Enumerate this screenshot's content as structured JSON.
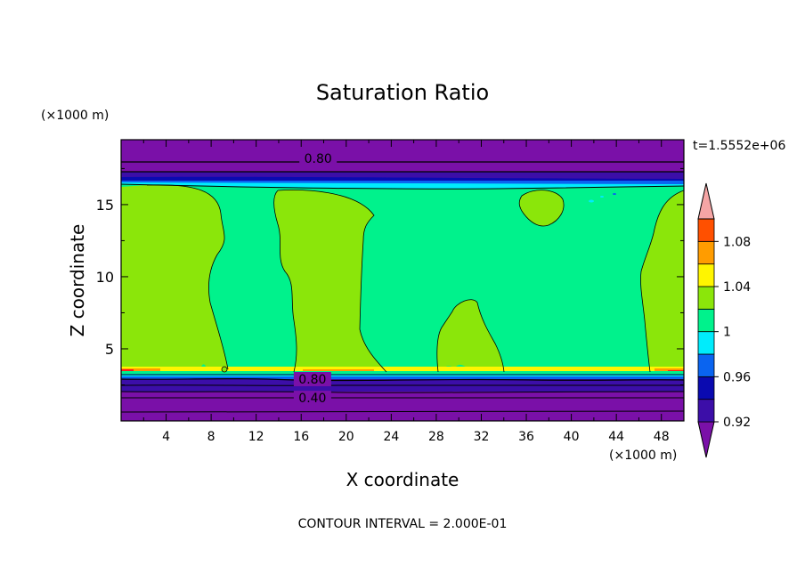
{
  "chart_data": {
    "type": "heatmap",
    "title": "Saturation Ratio",
    "xlabel": "X coordinate",
    "ylabel": "Z coordinate",
    "x_unit": "(×1000 m)",
    "y_unit": "(×1000 m)",
    "time_label": "t=1.5552e+06",
    "footer": "CONTOUR INTERVAL = 2.000E-01",
    "xlim": [
      0,
      50
    ],
    "ylim": [
      0,
      19.5
    ],
    "x_ticks": [
      4,
      8,
      12,
      16,
      20,
      24,
      28,
      32,
      36,
      40,
      44,
      48
    ],
    "y_ticks": [
      5,
      10,
      15
    ],
    "contour_labels": [
      {
        "text": "0.80",
        "x": 17.5,
        "z": 18.2
      },
      {
        "text": "0.80",
        "x": 17.0,
        "z": 2.9
      },
      {
        "text": "0.40",
        "x": 17.0,
        "z": 1.6
      }
    ],
    "colorbar": {
      "levels": [
        0.92,
        0.94,
        0.96,
        0.98,
        1.0,
        1.02,
        1.04,
        1.06,
        1.08,
        1.1
      ],
      "labels": [
        "0.92",
        "0.96",
        "1",
        "1.04",
        "1.08"
      ],
      "colors": [
        "#7a10a8",
        "#3c0ea8",
        "#0a0ab0",
        "#0a64f0",
        "#00ecfc",
        "#00f28c",
        "#8be60a",
        "#fff500",
        "#ff9c00",
        "#ff5000",
        "#ff1a1a",
        "#f5a5a5"
      ]
    },
    "colors": {
      "dry": "#7a10a8",
      "band_dark": "#3c0ea8",
      "band_blue": "#0a0ab0",
      "band_mid": "#0a64f0",
      "band_cyan": "#00ecfc",
      "base": "#00f28c",
      "super": "#8be60a",
      "yellow": "#fff500",
      "orange": "#ff9c00",
      "red": "#ff1a1a"
    }
  }
}
